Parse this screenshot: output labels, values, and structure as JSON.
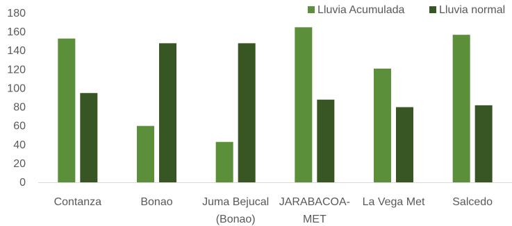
{
  "chart_data": {
    "type": "bar",
    "categories": [
      [
        "Contanza"
      ],
      [
        "Bonao"
      ],
      [
        "Juma Bejucal",
        "(Bonao)"
      ],
      [
        "JARABACOA-",
        "MET"
      ],
      [
        "La Vega Met"
      ],
      [
        "Salcedo"
      ]
    ],
    "series": [
      {
        "name": "Lluvia Acumulada",
        "color": "#5b8f3a",
        "values": [
          153,
          60,
          43,
          165,
          121,
          157
        ]
      },
      {
        "name": "Lluvia normal",
        "color": "#375623",
        "values": [
          95,
          148,
          148,
          88,
          80,
          82
        ]
      }
    ],
    "ylim": [
      0,
      180
    ],
    "yticks": [
      0,
      20,
      40,
      60,
      80,
      100,
      120,
      140,
      160,
      180
    ],
    "grid": false,
    "legend_position": "top-right",
    "title": "",
    "xlabel": "",
    "ylabel": ""
  }
}
